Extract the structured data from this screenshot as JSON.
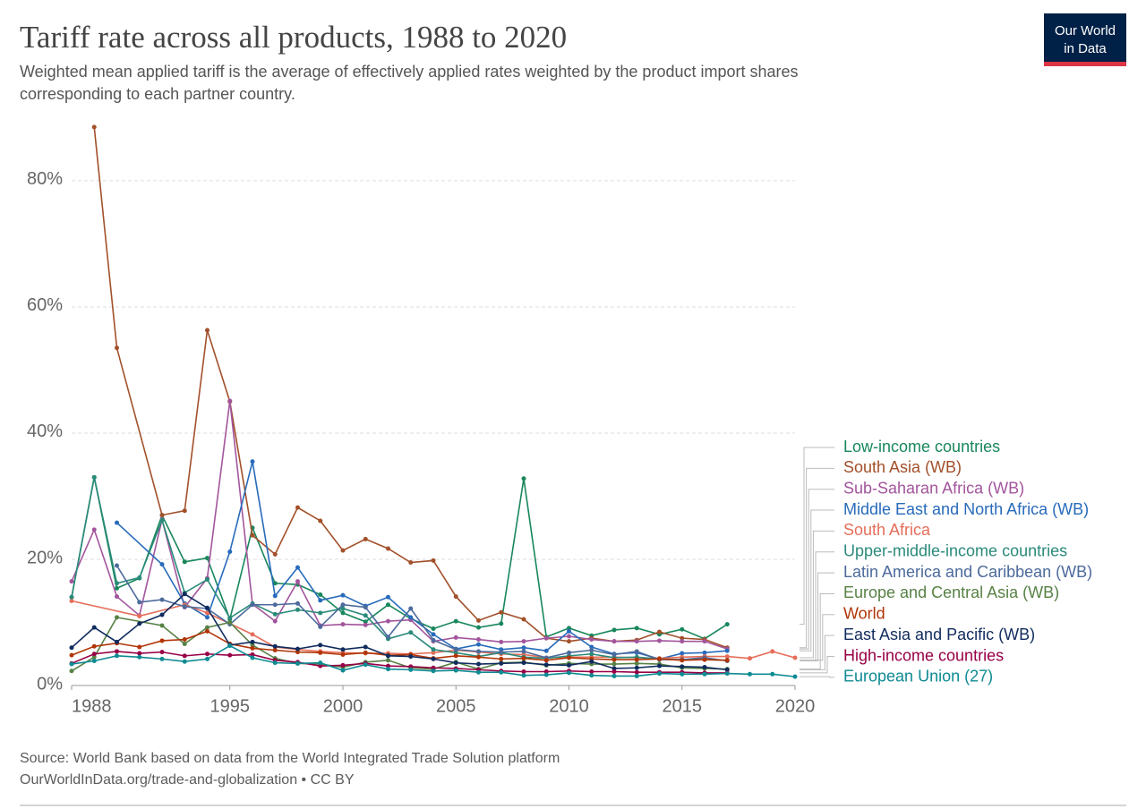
{
  "header": {
    "title": "Tariff rate across all products, 1988 to 2020",
    "subtitle_lines": [
      "Weighted mean applied tariff is the average of effectively applied rates weighted by the product import shares",
      "corresponding to each partner country."
    ],
    "logo": [
      "Our World",
      "in Data"
    ]
  },
  "chart_data": {
    "type": "line",
    "xlim": [
      1988,
      2020
    ],
    "xticks": [
      1988,
      1995,
      2000,
      2005,
      2010,
      2015,
      2020
    ],
    "ylim": [
      0,
      88.5
    ],
    "yticks": [
      {
        "value": 0,
        "label": "0%"
      },
      {
        "value": 20,
        "label": "20%"
      },
      {
        "value": 40,
        "label": "40%"
      },
      {
        "value": 60,
        "label": "60%"
      },
      {
        "value": 80,
        "label": "80%"
      }
    ],
    "grid": true,
    "series": [
      {
        "name": "Low-income countries",
        "color": "#18875c",
        "x": [
          1988,
          1989,
          1990,
          1991,
          1992,
          1993,
          1994,
          1995,
          1996,
          1997,
          1998,
          1999,
          2000,
          2001,
          2002,
          2003,
          2004,
          2005,
          2006,
          2007,
          2008,
          2009,
          2010,
          2011,
          2012,
          2013,
          2014,
          2015,
          2016,
          2017
        ],
        "values": [
          14,
          33,
          15.4,
          17,
          27,
          19.6,
          20.2,
          10.5,
          25,
          16.2,
          16,
          14.4,
          11.5,
          10.1,
          12.8,
          10.6,
          9,
          10.2,
          9.2,
          9.8,
          32.8,
          7.7,
          9.1,
          7.9,
          8.8,
          9.1,
          8.1,
          8.9,
          7.4,
          9.7
        ]
      },
      {
        "name": "South Asia (WB)",
        "color": "#a2502a",
        "x": [
          1989,
          1990,
          1992,
          1993,
          1994,
          1995,
          1996,
          1997,
          1998,
          1999,
          2000,
          2001,
          2002,
          2003,
          2004,
          2005,
          2006,
          2007,
          2008,
          2009,
          2010,
          2011,
          2012,
          2013,
          2014,
          2015,
          2016,
          2017
        ],
        "values": [
          88.5,
          53.5,
          27,
          27.7,
          56.3,
          45,
          23.8,
          20.8,
          28.2,
          26.1,
          21.4,
          23.2,
          21.7,
          19.5,
          19.8,
          14.1,
          10.3,
          11.6,
          10.5,
          7.5,
          7,
          7.5,
          7,
          7.2,
          8.5,
          7.5,
          7.3,
          6
        ]
      },
      {
        "name": "Sub-Saharan Africa (WB)",
        "color": "#a2559c",
        "x": [
          1988,
          1989,
          1990,
          1991,
          1992,
          1993,
          1994,
          1995,
          1996,
          1997,
          1998,
          1999,
          2000,
          2001,
          2002,
          2003,
          2004,
          2005,
          2006,
          2007,
          2008,
          2009,
          2010,
          2011,
          2012,
          2013,
          2014,
          2015,
          2016,
          2017
        ],
        "values": [
          16.5,
          24.7,
          14.1,
          11.1,
          26.3,
          12.4,
          17,
          45.1,
          12.9,
          10.2,
          16.5,
          9.5,
          9.7,
          9.6,
          10.2,
          10.4,
          7,
          7.6,
          7.3,
          6.9,
          7,
          7.5,
          7.8,
          7.3,
          7,
          7,
          7.1,
          7,
          7,
          5.8
        ]
      },
      {
        "name": "Middle East and North Africa (WB)",
        "color": "#286bbb",
        "x": [
          1990,
          1992,
          1993,
          1994,
          1995,
          1996,
          1997,
          1998,
          1999,
          2000,
          2001,
          2002,
          2003,
          2004,
          2005,
          2006,
          2007,
          2008,
          2009,
          2010,
          2011,
          2012,
          2013,
          2014,
          2015,
          2016,
          2017
        ],
        "values": [
          25.8,
          19.2,
          13,
          10.8,
          21.2,
          35.5,
          14.2,
          18.7,
          13.5,
          14.3,
          12.6,
          14,
          10.8,
          8.1,
          5.8,
          6.5,
          5.7,
          6,
          5.5,
          8.6,
          6.1,
          5,
          5.2,
          4.2,
          5.1,
          5.2,
          5.5
        ]
      },
      {
        "name": "South Africa",
        "color": "#e56e5a",
        "x": [
          1988,
          1991,
          1993,
          1994,
          1995,
          1996,
          1997,
          1998,
          1999,
          2000,
          2001,
          2002,
          2003,
          2004,
          2005,
          2006,
          2007,
          2008,
          2009,
          2010,
          2011,
          2012,
          2013,
          2014,
          2015,
          2016,
          2017,
          2018,
          2019,
          2020
        ],
        "values": [
          13.4,
          11,
          12.8,
          11.5,
          9.8,
          8.1,
          6.1,
          5.7,
          5.4,
          5.2,
          5.1,
          5.1,
          5,
          5.2,
          5.6,
          5.3,
          5,
          4.9,
          4.4,
          4.5,
          4.5,
          4.5,
          4.4,
          4.3,
          4.5,
          4.6,
          4.6,
          4.3,
          5.4,
          4.4
        ]
      },
      {
        "name": "Upper-middle-income countries",
        "color": "#2a8a7a",
        "x": [
          1988,
          1989,
          1990,
          1991,
          1992,
          1993,
          1994,
          1995,
          1996,
          1997,
          1998,
          1999,
          2000,
          2001,
          2002,
          2003,
          2004,
          2005,
          2006,
          2007,
          2008,
          2009,
          2010,
          2011,
          2012,
          2013,
          2014,
          2015,
          2016,
          2017
        ],
        "values": [
          14,
          33,
          16.2,
          17.1,
          26.2,
          14.7,
          16.8,
          10.7,
          13,
          11.3,
          12,
          11.5,
          12.2,
          11.1,
          7.4,
          8.4,
          5.7,
          5.2,
          4.6,
          5.2,
          4.5,
          4.3,
          4.7,
          5,
          4.4,
          4.5,
          4.2,
          4.1,
          4.1,
          4
        ]
      },
      {
        "name": "Latin America and Caribbean (WB)",
        "color": "#4c6a9c",
        "x": [
          1990,
          1991,
          1992,
          1993,
          1994,
          1995,
          1996,
          1997,
          1998,
          1999,
          2000,
          2001,
          2002,
          2003,
          2004,
          2005,
          2006,
          2007,
          2008,
          2009,
          2010,
          2011,
          2012,
          2013,
          2014,
          2015,
          2016,
          2017
        ],
        "values": [
          19,
          13.2,
          13.6,
          12.5,
          12.2,
          9.7,
          12.8,
          12.8,
          13,
          9.3,
          12.8,
          12.4,
          7.7,
          12.2,
          7.2,
          5.7,
          5.4,
          5.3,
          5.4,
          4.4,
          5.2,
          5.6,
          4.9,
          5.4,
          4.1,
          4.1,
          4.4,
          3.9
        ]
      },
      {
        "name": "Europe and Central Asia (WB)",
        "color": "#578145",
        "x": [
          1988,
          1989,
          1990,
          1992,
          1993,
          1994,
          1995,
          1996,
          1997,
          1998,
          1999,
          2000,
          2001,
          2002,
          2003,
          2004,
          2005,
          2006,
          2007,
          2008,
          2009,
          2010,
          2011,
          2012,
          2013,
          2014,
          2015,
          2016,
          2017
        ],
        "values": [
          2.3,
          4.5,
          10.8,
          9.5,
          6.6,
          9.2,
          10,
          6.4,
          4.3,
          3.5,
          3.4,
          2.9,
          3.7,
          4,
          2.8,
          2.6,
          3.7,
          2.6,
          3.6,
          3.7,
          3.2,
          3.5,
          3.4,
          3.4,
          3.5,
          3.4,
          2.8,
          2.7,
          2.6
        ]
      },
      {
        "name": "World",
        "color": "#b13507",
        "x": [
          1988,
          1989,
          1990,
          1991,
          1992,
          1993,
          1994,
          1995,
          1996,
          1997,
          1998,
          1999,
          2000,
          2001,
          2002,
          2003,
          2004,
          2005,
          2006,
          2007,
          2008,
          2009,
          2010,
          2011,
          2012,
          2013,
          2014,
          2015,
          2016,
          2017
        ],
        "values": [
          4.8,
          6.2,
          6.7,
          6.1,
          7.1,
          7.3,
          8.6,
          6.6,
          5.9,
          5.6,
          5.3,
          5.2,
          4.9,
          5.2,
          4.8,
          4.9,
          4.3,
          4.7,
          4.5,
          4.2,
          4.3,
          4,
          4.4,
          4.2,
          4.1,
          4.1,
          4.2,
          4,
          4.1,
          4
        ]
      },
      {
        "name": "East Asia and Pacific (WB)",
        "color": "#102b5e",
        "x": [
          1988,
          1989,
          1990,
          1991,
          1992,
          1993,
          1994,
          1995,
          1996,
          1997,
          1998,
          1999,
          2000,
          2001,
          2002,
          2003,
          2004,
          2005,
          2006,
          2007,
          2008,
          2009,
          2010,
          2011,
          2012,
          2013,
          2014,
          2015,
          2016,
          2017
        ],
        "values": [
          6,
          9.2,
          6.9,
          9.8,
          11.2,
          14.5,
          12.3,
          6.4,
          6.9,
          6.2,
          5.8,
          6.4,
          5.7,
          6.1,
          4.7,
          4.6,
          4.2,
          3.6,
          3.4,
          3.5,
          3.6,
          3.3,
          3.2,
          3.8,
          2.7,
          2.8,
          3.1,
          3,
          2.9,
          2.5
        ]
      },
      {
        "name": "High-income countries",
        "color": "#970046",
        "x": [
          1988,
          1989,
          1990,
          1991,
          1992,
          1993,
          1994,
          1995,
          1996,
          1997,
          1998,
          1999,
          2000,
          2001,
          2002,
          2003,
          2004,
          2005,
          2006,
          2007,
          2008,
          2009,
          2010,
          2011,
          2012,
          2013,
          2014,
          2015,
          2016,
          2017
        ],
        "values": [
          3.5,
          5,
          5.4,
          5.1,
          5.3,
          4.7,
          5,
          4.8,
          4.9,
          4,
          3.7,
          3.1,
          3.2,
          3.5,
          3.1,
          3,
          2.8,
          2.7,
          2.5,
          2.3,
          2.2,
          2.2,
          2.3,
          2.2,
          2.2,
          2.1,
          2.1,
          2.1,
          2,
          2
        ]
      },
      {
        "name": "European Union (27)",
        "color": "#0e8a92",
        "x": [
          1988,
          1989,
          1990,
          1991,
          1992,
          1993,
          1994,
          1995,
          1996,
          1997,
          1998,
          1999,
          2000,
          2001,
          2002,
          2003,
          2004,
          2005,
          2006,
          2007,
          2008,
          2009,
          2010,
          2011,
          2012,
          2013,
          2014,
          2015,
          2016,
          2017,
          2018,
          2019,
          2020
        ],
        "values": [
          3.4,
          3.9,
          4.7,
          4.5,
          4.2,
          3.8,
          4.2,
          6.3,
          4.4,
          3.6,
          3.5,
          3.6,
          2.4,
          3.3,
          2.6,
          2.5,
          2.3,
          2.4,
          2.1,
          2.1,
          1.6,
          1.7,
          2,
          1.6,
          1.5,
          1.5,
          1.9,
          1.8,
          1.8,
          1.9,
          1.8,
          1.8,
          1.4
        ]
      }
    ]
  },
  "footer": {
    "source": "Source: World Bank based on data from the World Integrated Trade Solution platform",
    "url": "OurWorldInData.org/trade-and-globalization • CC BY"
  }
}
